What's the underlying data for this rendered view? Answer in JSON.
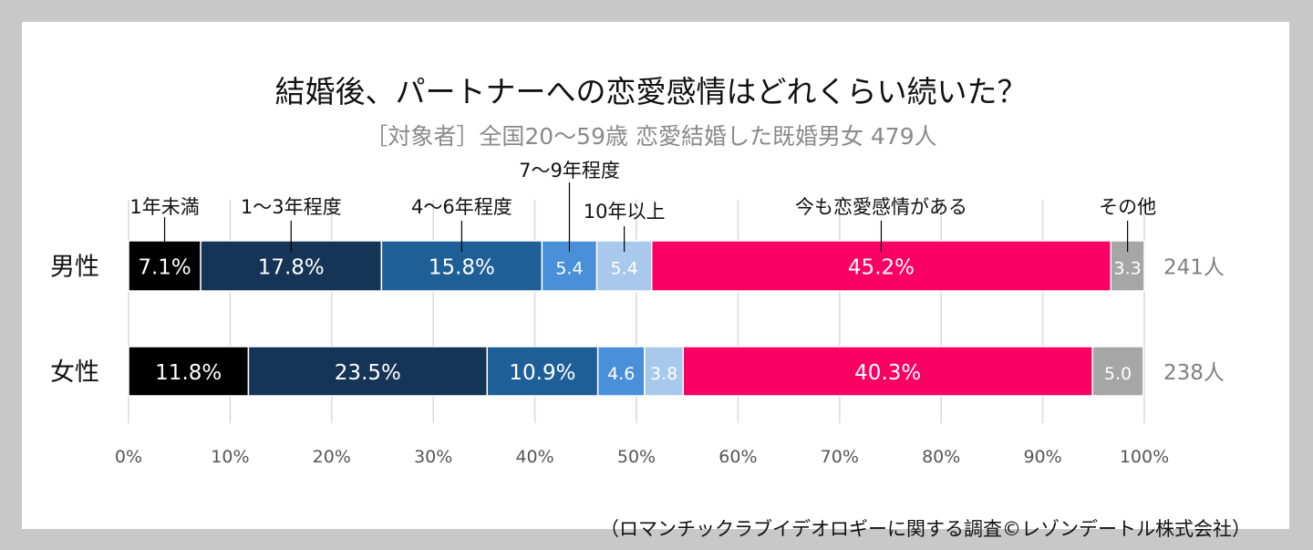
{
  "title": "結婚後、パートナーへの恋愛感情はどれくらい続いた？",
  "subtitle": "［対象者］全国20～59歳 恋愛結婚した既婚男女 479人",
  "source": "（ロマンチックラブイデオロギーに関する調査©レゾンデートル株式会社）",
  "chart_data": {
    "type": "bar",
    "orientation": "horizontal",
    "stacked": true,
    "title": "結婚後、パートナーへの恋愛感情はどれくらい続いた？",
    "subtitle": "［対象者］全国20～59歳 恋愛結婚した既婚男女 479人",
    "categories": [
      "男性",
      "女性"
    ],
    "totals": [
      "241人",
      "238人"
    ],
    "series": [
      {
        "name": "1年未満",
        "color": "#000000",
        "values": [
          7.1,
          11.8
        ],
        "labels": [
          "7.1%",
          "11.8%"
        ]
      },
      {
        "name": "1～3年程度",
        "color": "#163556",
        "values": [
          17.8,
          23.5
        ],
        "labels": [
          "17.8%",
          "23.5%"
        ]
      },
      {
        "name": "4～6年程度",
        "color": "#1f5f98",
        "values": [
          15.8,
          10.9
        ],
        "labels": [
          "15.8%",
          "10.9%"
        ]
      },
      {
        "name": "7～9年程度",
        "color": "#4a90d9",
        "values": [
          5.4,
          4.6
        ],
        "labels": [
          "5.4",
          "4.6"
        ]
      },
      {
        "name": "10年以上",
        "color": "#a8c8ec",
        "values": [
          5.4,
          3.8
        ],
        "labels": [
          "5.4",
          "3.8"
        ]
      },
      {
        "name": "今も恋愛感情がある",
        "color": "#fa0062",
        "values": [
          45.2,
          40.3
        ],
        "labels": [
          "45.2%",
          "40.3%"
        ]
      },
      {
        "name": "その他",
        "color": "#a6a6a6",
        "values": [
          3.3,
          5.0
        ],
        "labels": [
          "3.3",
          "5.0"
        ]
      }
    ],
    "xlim": [
      0,
      100
    ],
    "xticks": [
      0,
      10,
      20,
      30,
      40,
      50,
      60,
      70,
      80,
      90,
      100
    ],
    "xtick_labels": [
      "0%",
      "10%",
      "20%",
      "30%",
      "40%",
      "50%",
      "60%",
      "70%",
      "80%",
      "90%",
      "100%"
    ],
    "grid": true,
    "legend": "callout labels above the 男性 bar"
  }
}
